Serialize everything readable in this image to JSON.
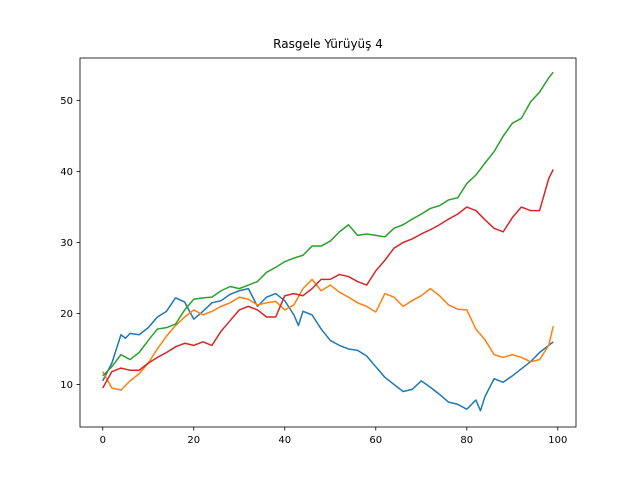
{
  "chart_data": {
    "type": "line",
    "title": "Rasgele Yürüyüş 4",
    "xlabel": "",
    "ylabel": "",
    "xlim": [
      -5,
      104
    ],
    "ylim": [
      4,
      56
    ],
    "xticks": [
      0,
      20,
      40,
      60,
      80,
      100
    ],
    "yticks": [
      10,
      20,
      30,
      40,
      50
    ],
    "grid": false,
    "legend": "none",
    "series": [
      {
        "color": "#1f77b4",
        "x": [
          0,
          2,
          4,
          5,
          6,
          8,
          10,
          12,
          14,
          16,
          18,
          20,
          22,
          24,
          26,
          28,
          30,
          32,
          34,
          36,
          38,
          40,
          42,
          43,
          44,
          46,
          48,
          50,
          52,
          54,
          56,
          58,
          60,
          62,
          64,
          66,
          68,
          70,
          72,
          74,
          76,
          78,
          80,
          82,
          83,
          84,
          86,
          88,
          90,
          92,
          94,
          96,
          98,
          99
        ],
        "y": [
          10.5,
          13,
          17,
          16.5,
          17.2,
          17,
          18,
          19.5,
          20.3,
          22.2,
          21.6,
          19.2,
          20.3,
          21.5,
          21.8,
          22.7,
          23.2,
          23.5,
          21,
          22.3,
          22.8,
          21.8,
          19.8,
          18.3,
          20.3,
          19.8,
          17.8,
          16.2,
          15.5,
          15,
          14.8,
          14,
          12.5,
          11,
          10,
          9,
          9.3,
          10.5,
          9.6,
          8.6,
          7.5,
          7.2,
          6.5,
          7.8,
          6.3,
          8.3,
          10.8,
          10.3,
          11.2,
          12.2,
          13.2,
          14.5,
          15.5,
          16
        ]
      },
      {
        "color": "#ff7f0e",
        "x": [
          0,
          2,
          4,
          6,
          8,
          10,
          12,
          14,
          16,
          18,
          20,
          22,
          24,
          26,
          28,
          30,
          32,
          34,
          36,
          38,
          40,
          42,
          44,
          46,
          48,
          50,
          52,
          54,
          56,
          58,
          60,
          62,
          64,
          66,
          68,
          70,
          72,
          74,
          76,
          78,
          80,
          82,
          84,
          86,
          88,
          90,
          92,
          94,
          96,
          98,
          99
        ],
        "y": [
          11.8,
          9.5,
          9.2,
          10.5,
          11.5,
          13,
          15,
          16.8,
          18.3,
          19.5,
          20.5,
          19.8,
          20.3,
          21,
          21.5,
          22.3,
          22,
          21.2,
          21.5,
          21.7,
          20.5,
          21.2,
          23.5,
          24.8,
          23.2,
          24,
          23,
          22.3,
          21.5,
          21,
          20.2,
          22.8,
          22.3,
          21,
          21.8,
          22.5,
          23.5,
          22.5,
          21.2,
          20.6,
          20.5,
          17.8,
          16.3,
          14.2,
          13.8,
          14.2,
          13.8,
          13.2,
          13.5,
          15.5,
          18.2
        ]
      },
      {
        "color": "#2ca02c",
        "x": [
          0,
          2,
          4,
          6,
          8,
          10,
          12,
          14,
          16,
          18,
          20,
          22,
          24,
          26,
          28,
          30,
          32,
          34,
          36,
          38,
          40,
          42,
          44,
          46,
          48,
          50,
          52,
          54,
          56,
          58,
          60,
          62,
          64,
          66,
          68,
          70,
          72,
          74,
          76,
          78,
          80,
          82,
          84,
          86,
          88,
          90,
          92,
          94,
          96,
          98,
          99
        ],
        "y": [
          11.2,
          12.5,
          14.2,
          13.5,
          14.5,
          16.2,
          17.8,
          18,
          18.5,
          20.5,
          22,
          22.2,
          22.3,
          23.2,
          23.8,
          23.5,
          24,
          24.5,
          25.8,
          26.5,
          27.3,
          27.8,
          28.2,
          29.5,
          29.5,
          30.2,
          31.5,
          32.5,
          31,
          31.2,
          31,
          30.8,
          32,
          32.5,
          33.3,
          34,
          34.8,
          35.2,
          36,
          36.3,
          38.3,
          39.5,
          41.2,
          42.8,
          45,
          46.8,
          47.5,
          49.8,
          51.2,
          53.2,
          54
        ]
      },
      {
        "color": "#d62728",
        "x": [
          0,
          2,
          4,
          6,
          8,
          10,
          12,
          14,
          16,
          18,
          20,
          22,
          24,
          26,
          28,
          30,
          32,
          34,
          36,
          38,
          40,
          42,
          44,
          46,
          48,
          50,
          52,
          54,
          56,
          58,
          60,
          62,
          64,
          66,
          68,
          70,
          72,
          74,
          76,
          78,
          80,
          82,
          84,
          86,
          88,
          90,
          92,
          94,
          96,
          98,
          99
        ],
        "y": [
          9.5,
          11.8,
          12.3,
          12,
          12,
          13,
          13.8,
          14.5,
          15.3,
          15.8,
          15.5,
          16,
          15.5,
          17.5,
          19,
          20.5,
          21,
          20.5,
          19.5,
          19.5,
          22.5,
          22.8,
          22.5,
          23.5,
          24.8,
          24.8,
          25.5,
          25.2,
          24.5,
          24,
          26,
          27.5,
          29.2,
          30,
          30.5,
          31.2,
          31.8,
          32.5,
          33.3,
          34,
          35,
          34.5,
          33.2,
          32,
          31.5,
          33.5,
          35,
          34.5,
          34.5,
          39,
          40.3
        ]
      }
    ]
  }
}
